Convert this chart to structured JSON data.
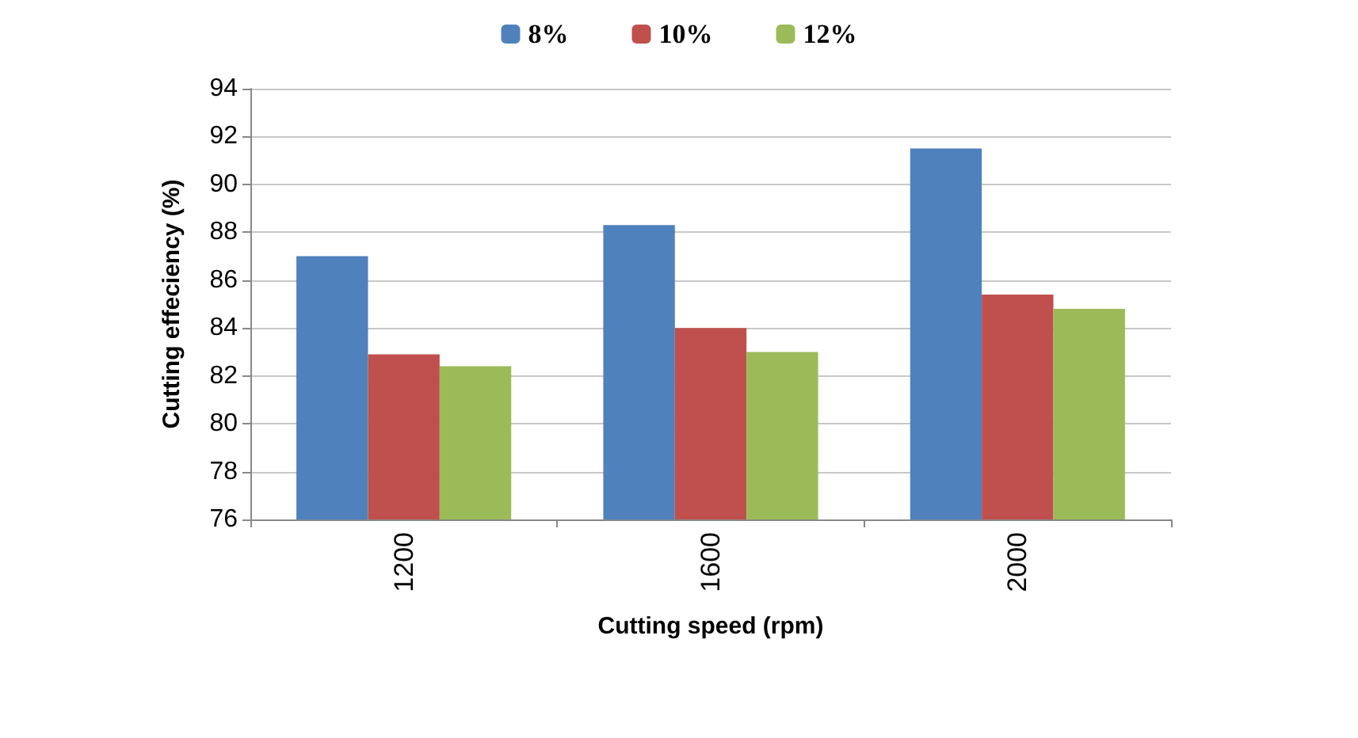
{
  "chart_data": {
    "type": "bar",
    "xlabel": "Cutting speed (rpm)",
    "ylabel": "Cutting effeciency (%)",
    "categories": [
      "1200",
      "1600",
      "2000"
    ],
    "series": [
      {
        "name": "8%",
        "color": "#4f81bd",
        "values": [
          87.0,
          88.3,
          91.5
        ]
      },
      {
        "name": "10%",
        "color": "#c0504d",
        "values": [
          82.9,
          84.0,
          85.4
        ]
      },
      {
        "name": "12%",
        "color": "#9bbb59",
        "values": [
          82.4,
          83.0,
          84.8
        ]
      }
    ],
    "ylim": [
      76,
      94
    ],
    "yticks": [
      76,
      78,
      80,
      82,
      84,
      86,
      88,
      90,
      92,
      94
    ],
    "grid": "y",
    "legend": "top"
  }
}
